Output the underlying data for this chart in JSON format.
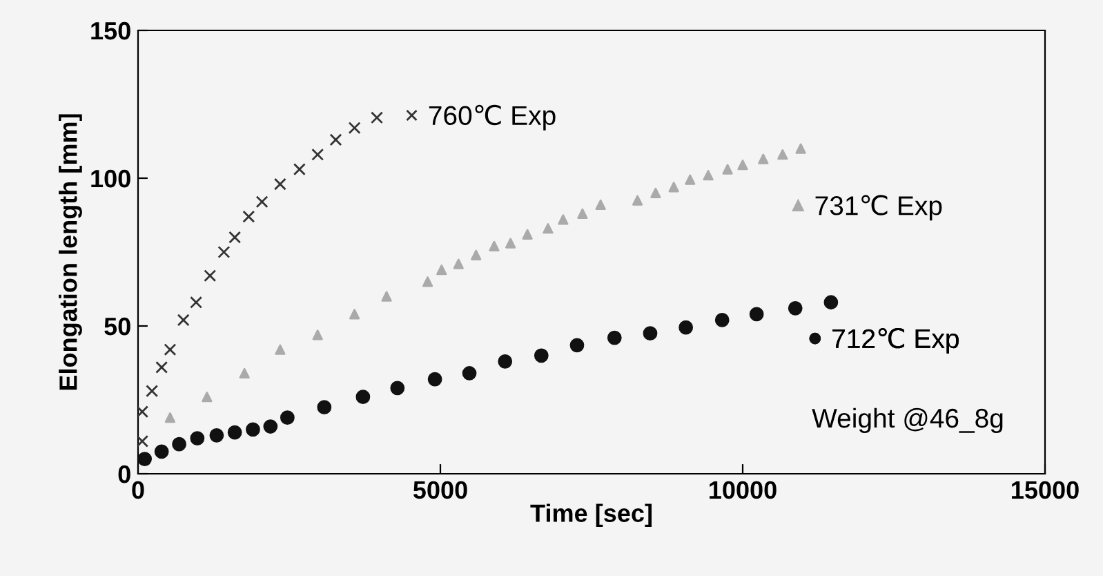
{
  "chart_data": {
    "type": "scatter",
    "xlabel": "Time [sec]",
    "ylabel": "Elongation length [mm]",
    "xlim": [
      0,
      15000
    ],
    "xticks": [
      0,
      5000,
      10000,
      15000
    ],
    "ylim": [
      0,
      150
    ],
    "yticks": [
      0,
      50,
      100,
      150
    ],
    "grid": false,
    "legend": "right",
    "annotations": [
      "Weight @46_8g"
    ],
    "series": [
      {
        "name": "760℃ Exp",
        "color": "#333333",
        "marker": "cross",
        "x": [
          70,
          70,
          230,
          390,
          530,
          750,
          960,
          1190,
          1420,
          1600,
          1830,
          2050,
          2350,
          2670,
          2970,
          3270,
          3580,
          3950
        ],
        "values": [
          11,
          21,
          28,
          36,
          42,
          52,
          58,
          67,
          75,
          80,
          87,
          92,
          98,
          103,
          108,
          113,
          117,
          120.5
        ]
      },
      {
        "name": "731℃ Exp",
        "color": "#aaaaaa",
        "marker": "triangle",
        "x": [
          530,
          1140,
          1760,
          2350,
          2970,
          3580,
          4110,
          4790,
          5020,
          5300,
          5590,
          5890,
          6160,
          6440,
          6780,
          7030,
          7350,
          7650,
          8260,
          8560,
          8860,
          9130,
          9430,
          9750,
          10000,
          10340,
          10660,
          10960
        ],
        "values": [
          19,
          26,
          34,
          42,
          47,
          54,
          60,
          65,
          69,
          71,
          74,
          77,
          78,
          81,
          83,
          86,
          88,
          91,
          92.5,
          95,
          97,
          99.5,
          101,
          103,
          104.5,
          106.5,
          108,
          110
        ]
      },
      {
        "name": "712℃ Exp",
        "color": "#111111",
        "marker": "circle",
        "x": [
          110,
          390,
          680,
          980,
          1300,
          1600,
          1900,
          2190,
          2470,
          3080,
          3720,
          4290,
          4910,
          5480,
          6070,
          6670,
          7260,
          7880,
          8470,
          9060,
          9660,
          10230,
          10870,
          11460
        ],
        "values": [
          5,
          7.5,
          10,
          12,
          13,
          14,
          15,
          16,
          19,
          22.5,
          26,
          29,
          32,
          34,
          38,
          40,
          43.5,
          46,
          47.5,
          49.5,
          52,
          54,
          56,
          58
        ]
      }
    ]
  }
}
